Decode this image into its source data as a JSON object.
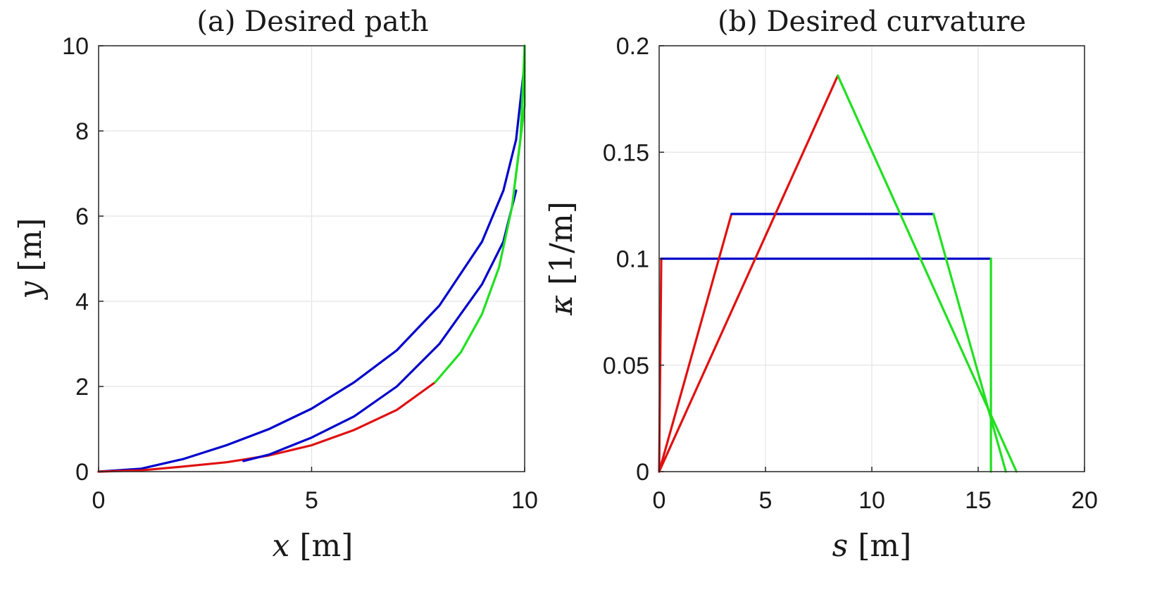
{
  "chart_data": [
    {
      "type": "line",
      "title": "(a) Desired path",
      "xlabel_var": "x",
      "xlabel_unit": "[m]",
      "ylabel_var": "y",
      "ylabel_unit": "[m]",
      "xlim": [
        0,
        10
      ],
      "ylim": [
        0,
        10
      ],
      "xticks": [
        0,
        5,
        10
      ],
      "yticks": [
        0,
        2,
        4,
        6,
        8,
        10
      ],
      "grid": true,
      "series": [
        {
          "name": "outer-blue-path",
          "color": "#0000cc",
          "points": [
            [
              0,
              0
            ],
            [
              1,
              0.07
            ],
            [
              2,
              0.3
            ],
            [
              3,
              0.62
            ],
            [
              4,
              1.0
            ],
            [
              5,
              1.48
            ],
            [
              6,
              2.1
            ],
            [
              7,
              2.85
            ],
            [
              8,
              3.9
            ],
            [
              9,
              5.4
            ],
            [
              9.5,
              6.6
            ],
            [
              9.8,
              7.8
            ],
            [
              10,
              9.6
            ]
          ]
        },
        {
          "name": "inner-path-red-segment",
          "color": "#e01010",
          "points": [
            [
              0,
              0
            ],
            [
              1,
              0.03
            ],
            [
              2,
              0.12
            ],
            [
              3,
              0.22
            ],
            [
              3.5,
              0.3
            ],
            [
              4,
              0.38
            ],
            [
              5,
              0.62
            ],
            [
              6,
              0.98
            ],
            [
              7,
              1.45
            ],
            [
              7.9,
              2.1
            ]
          ]
        },
        {
          "name": "inner-path-blue-segment",
          "color": "#0000cc",
          "points": [
            [
              3.4,
              0.25
            ],
            [
              4,
              0.4
            ],
            [
              5,
              0.8
            ],
            [
              6,
              1.3
            ],
            [
              7,
              2.0
            ],
            [
              8,
              3.0
            ],
            [
              9,
              4.4
            ],
            [
              9.5,
              5.4
            ],
            [
              9.8,
              6.6
            ]
          ]
        },
        {
          "name": "inner-path-green-segment",
          "color": "#20e020",
          "points": [
            [
              7.9,
              2.1
            ],
            [
              8.5,
              2.8
            ],
            [
              9,
              3.7
            ],
            [
              9.4,
              4.8
            ],
            [
              9.7,
              6.2
            ],
            [
              9.9,
              7.8
            ],
            [
              10,
              10
            ]
          ]
        },
        {
          "name": "green-end-segment",
          "color": "#20e020",
          "points": [
            [
              9.75,
              6.6
            ],
            [
              9.9,
              7.8
            ],
            [
              10,
              8.6
            ],
            [
              10,
              10
            ]
          ]
        }
      ]
    },
    {
      "type": "line",
      "title": "(b) Desired curvature",
      "xlabel_var": "s",
      "xlabel_unit": "[m]",
      "ylabel_var": "κ",
      "ylabel_unit": "[1/m]",
      "xlim": [
        0,
        20
      ],
      "ylim": [
        0,
        0.2
      ],
      "xticks": [
        0,
        5,
        10,
        15,
        20
      ],
      "yticks": [
        0,
        0.05,
        0.1,
        0.15,
        0.2
      ],
      "grid": true,
      "series": [
        {
          "name": "red-step-up",
          "color": "#e01010",
          "points": [
            [
              0,
              0
            ],
            [
              0.1,
              0.1
            ]
          ]
        },
        {
          "name": "blue-plateau-0.1",
          "color": "#0000cc",
          "points": [
            [
              0.1,
              0.1
            ],
            [
              15.6,
              0.1
            ]
          ]
        },
        {
          "name": "green-step-down",
          "color": "#20e020",
          "points": [
            [
              15.6,
              0.1
            ],
            [
              15.6,
              0
            ]
          ]
        },
        {
          "name": "red-ramp-to-0.12",
          "color": "#e01010",
          "points": [
            [
              0,
              0
            ],
            [
              3.4,
              0.121
            ]
          ]
        },
        {
          "name": "blue-plateau-0.12",
          "color": "#0000cc",
          "points": [
            [
              3.4,
              0.121
            ],
            [
              12.9,
              0.121
            ]
          ]
        },
        {
          "name": "green-ramp-from-0.12",
          "color": "#20e020",
          "points": [
            [
              12.9,
              0.121
            ],
            [
              16.3,
              0
            ]
          ]
        },
        {
          "name": "red-ramp-to-peak",
          "color": "#e01010",
          "points": [
            [
              0,
              0
            ],
            [
              8.4,
              0.186
            ]
          ]
        },
        {
          "name": "green-ramp-from-peak",
          "color": "#20e020",
          "points": [
            [
              8.4,
              0.186
            ],
            [
              16.8,
              0
            ]
          ]
        }
      ]
    }
  ]
}
